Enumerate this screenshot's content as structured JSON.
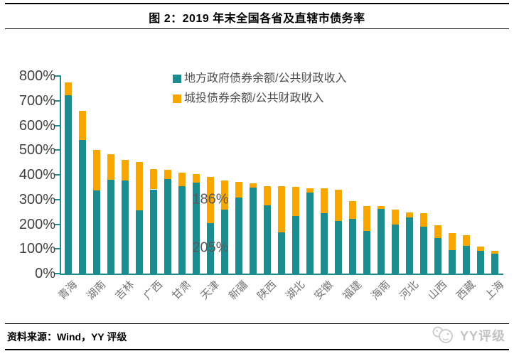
{
  "header": {
    "title": "图 2：2019 年末全国各省及直辖市债务率"
  },
  "footer": {
    "source": "资料来源：Wind，YY 评级",
    "watermark": "YY评级"
  },
  "colors": {
    "teal": "#1b8c90",
    "orange": "#f7a600",
    "axis": "#1b8c90",
    "y_label": "#404040",
    "x_label": "#757575",
    "annotation": "#595959",
    "legend_text": "#4d4d4d",
    "watermark_grey": "#c3c3c3"
  },
  "chart_data": {
    "type": "bar",
    "stacked": true,
    "title": "图 2：2019 年末全国各省及直辖市债务率",
    "xlabel": "",
    "ylabel": "",
    "ylim": [
      0,
      800
    ],
    "yticks": [
      "0%",
      "100%",
      "200%",
      "300%",
      "400%",
      "500%",
      "600%",
      "700%",
      "800%"
    ],
    "grid": false,
    "legend_position": "top-center",
    "categories": [
      "青海",
      "",
      "湖南",
      "",
      "吉林",
      "",
      "广西",
      "",
      "甘肃",
      "",
      "天津",
      "",
      "新疆",
      "",
      "陕西",
      "",
      "湖北",
      "",
      "安徽",
      "",
      "福建",
      "",
      "海南",
      "",
      "河北",
      "",
      "山西",
      "",
      "西藏",
      "",
      "上海"
    ],
    "series": [
      {
        "name": "地方政府债券余额/公共财政收入",
        "color_key": "teal",
        "values": [
          723,
          540,
          338,
          380,
          378,
          257,
          341,
          384,
          355,
          368,
          205,
          258,
          307,
          349,
          276,
          166,
          234,
          327,
          245,
          212,
          222,
          172,
          262,
          198,
          228,
          191,
          143,
          94,
          111,
          93,
          80
        ]
      },
      {
        "name": "城投债券余额/公共财政收入",
        "color_key": "orange",
        "values": [
          51,
          119,
          163,
          103,
          81,
          195,
          83,
          35,
          54,
          35,
          186,
          119,
          65,
          16,
          79,
          187,
          116,
          19,
          99,
          129,
          71,
          102,
          10,
          60,
          19,
          53,
          52,
          69,
          44,
          16,
          12
        ]
      }
    ],
    "annotations": [
      {
        "text": "186%",
        "bar_index": 10,
        "segment": "orange"
      },
      {
        "text": "205%",
        "bar_index": 10,
        "segment": "teal"
      }
    ]
  }
}
